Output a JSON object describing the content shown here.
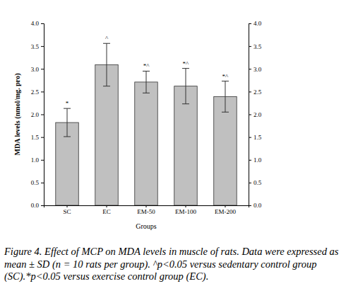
{
  "chart_data": {
    "type": "bar",
    "categories": [
      "SC",
      "EC",
      "EM-50",
      "EM-100",
      "EM-200"
    ],
    "values": [
      1.82,
      3.09,
      2.71,
      2.62,
      2.39
    ],
    "errors": [
      0.31,
      0.47,
      0.24,
      0.39,
      0.34
    ],
    "significance": [
      "*",
      "^",
      "*^",
      "*^",
      "*^"
    ],
    "color": "#c0c0c0",
    "x_label": "Groups",
    "y_label": "MDA levels (nmol/mg. pro)",
    "ylim": [
      0,
      4
    ],
    "yticks": [
      {
        "value": 0,
        "label": "0.0"
      },
      0.5,
      {
        "value": 1,
        "label": "1.0"
      },
      1.5,
      {
        "value": 2,
        "label": "2.0"
      },
      2.5,
      {
        "value": 3,
        "label": "3.0"
      },
      3.5,
      {
        "value": 4,
        "label": "4.0"
      }
    ],
    "grid": false,
    "caption": "Figure 4. Effect of MCP on MDA levels in muscle of rats. Data were expressed as mean ± SD (n = 10 rats per group). ^p<0.05 versus sedentary control group (SC).*p<0.05 versus exercise control group (EC)."
  }
}
